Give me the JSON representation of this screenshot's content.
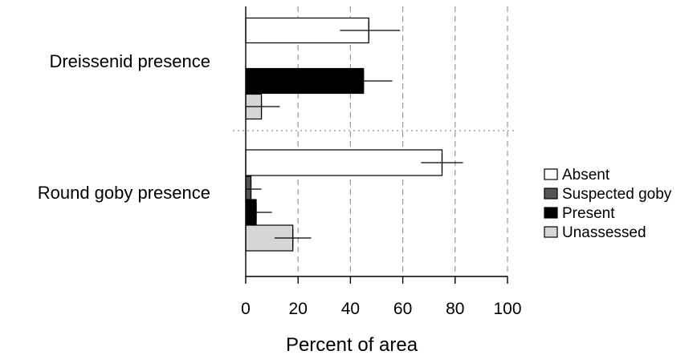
{
  "chart_data": {
    "type": "bar",
    "orientation": "horizontal",
    "title": "",
    "xlabel": "Percent of area",
    "ylabel": "",
    "xlim": [
      0,
      100
    ],
    "xticks": [
      0,
      20,
      40,
      60,
      80,
      100
    ],
    "grid": "vertical dashed",
    "legend_position": "right",
    "groups": [
      {
        "label": "Dreissenid presence",
        "bars": [
          {
            "series": "Absent",
            "value": 47,
            "error_low": 36,
            "error_high": 59
          },
          {
            "series": "Present",
            "value": 45,
            "error_low": 34,
            "error_high": 56
          },
          {
            "series": "Unassessed",
            "value": 6,
            "error_low": 0,
            "error_high": 13
          }
        ]
      },
      {
        "label": "Round goby presence",
        "bars": [
          {
            "series": "Absent",
            "value": 75,
            "error_low": 67,
            "error_high": 83
          },
          {
            "series": "Suspected goby",
            "value": 2,
            "error_low": 0,
            "error_high": 6
          },
          {
            "series": "Present",
            "value": 4,
            "error_low": 0,
            "error_high": 10
          },
          {
            "series": "Unassessed",
            "value": 18,
            "error_low": 11,
            "error_high": 25
          }
        ]
      }
    ],
    "series": [
      {
        "name": "Absent",
        "color": "#ffffff"
      },
      {
        "name": "Suspected goby",
        "color": "#555555"
      },
      {
        "name": "Present",
        "color": "#000000"
      },
      {
        "name": "Unassessed",
        "color": "#d6d6d6"
      }
    ]
  }
}
